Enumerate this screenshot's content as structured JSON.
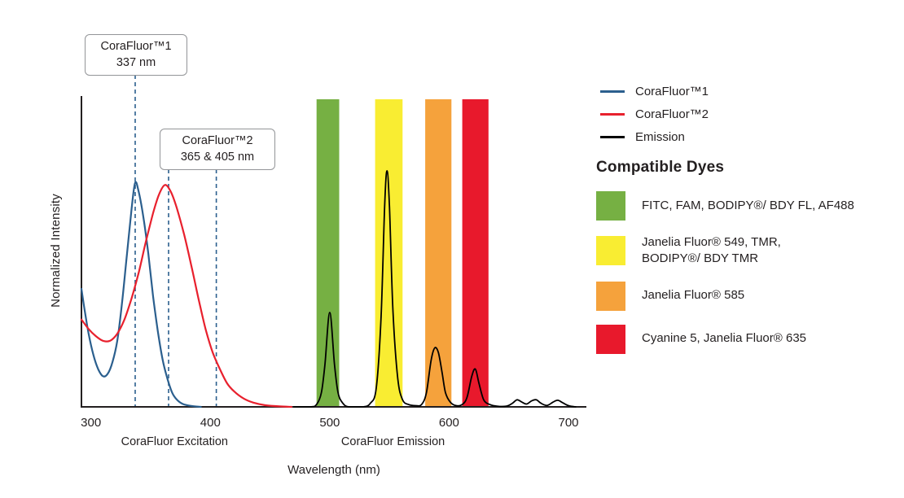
{
  "chart_data": {
    "type": "line",
    "xlabel": "Wavelength (nm)",
    "ylabel": "Normalized Intensity",
    "x_ticks": [
      "300",
      "400",
      "500",
      "600",
      "700"
    ],
    "x_tick_values": [
      300,
      400,
      500,
      600,
      700
    ],
    "xlim": [
      292,
      715
    ],
    "ylim": [
      0,
      1.31
    ],
    "grid": false,
    "legend_position": "right-top",
    "axis_color": "#231f20",
    "dashed_line_color": "#2b5f8e",
    "axis_sublabels": [
      {
        "label": "CoraFluor Excitation",
        "x_nm": 370
      },
      {
        "label": "CoraFluor Emission",
        "x_nm": 553
      }
    ],
    "filter_bands": [
      {
        "dye_group": "FITC, FAM, BODIPY®/ BDY FL, AF488",
        "color": "#76b043",
        "from_nm": 489,
        "to_nm": 508
      },
      {
        "dye_group": "Janelia Fluor® 549, TMR, BODIPY®/ BDY TMR",
        "color": "#f9ed32",
        "from_nm": 538,
        "to_nm": 561
      },
      {
        "dye_group": "Janelia Fluor® 585",
        "color": "#f5a23c",
        "from_nm": 580,
        "to_nm": 602
      },
      {
        "dye_group": "Cyanine 5, Janelia Fluor® 635",
        "color": "#e8192c",
        "from_nm": 611,
        "to_nm": 633
      }
    ],
    "series": [
      {
        "name": "CoraFluor™1",
        "color": "#2b5f8e",
        "peak_nm": 337,
        "points": [
          [
            292,
            0.5
          ],
          [
            295,
            0.4
          ],
          [
            298,
            0.31
          ],
          [
            302,
            0.22
          ],
          [
            306,
            0.16
          ],
          [
            310,
            0.13
          ],
          [
            314,
            0.14
          ],
          [
            318,
            0.19
          ],
          [
            322,
            0.28
          ],
          [
            326,
            0.44
          ],
          [
            330,
            0.64
          ],
          [
            334,
            0.84
          ],
          [
            337,
            0.95
          ],
          [
            340,
            0.91
          ],
          [
            344,
            0.8
          ],
          [
            348,
            0.65
          ],
          [
            352,
            0.47
          ],
          [
            356,
            0.32
          ],
          [
            360,
            0.2
          ],
          [
            364,
            0.12
          ],
          [
            368,
            0.06
          ],
          [
            372,
            0.03
          ],
          [
            377,
            0.012
          ],
          [
            384,
            0.004
          ],
          [
            392,
            0
          ]
        ]
      },
      {
        "name": "CoraFluor™2",
        "color": "#e8202d",
        "peak_nm": 362,
        "points": [
          [
            292,
            0.37
          ],
          [
            298,
            0.33
          ],
          [
            304,
            0.3
          ],
          [
            310,
            0.28
          ],
          [
            316,
            0.28
          ],
          [
            322,
            0.31
          ],
          [
            328,
            0.37
          ],
          [
            334,
            0.46
          ],
          [
            340,
            0.57
          ],
          [
            346,
            0.7
          ],
          [
            352,
            0.82
          ],
          [
            357,
            0.9
          ],
          [
            362,
            0.94
          ],
          [
            367,
            0.91
          ],
          [
            372,
            0.84
          ],
          [
            378,
            0.73
          ],
          [
            384,
            0.6
          ],
          [
            390,
            0.46
          ],
          [
            396,
            0.33
          ],
          [
            402,
            0.23
          ],
          [
            408,
            0.16
          ],
          [
            414,
            0.1
          ],
          [
            420,
            0.065
          ],
          [
            428,
            0.035
          ],
          [
            436,
            0.018
          ],
          [
            446,
            0.007
          ],
          [
            458,
            0.002
          ],
          [
            468,
            0
          ]
        ]
      },
      {
        "name": "Emission",
        "color": "#000000",
        "peak_nm": 548,
        "points": [
          [
            470,
            0
          ],
          [
            484,
            0
          ],
          [
            489,
            0.01
          ],
          [
            493,
            0.06
          ],
          [
            496,
            0.18
          ],
          [
            500,
            0.4
          ],
          [
            504,
            0.18
          ],
          [
            507,
            0.06
          ],
          [
            511,
            0.015
          ],
          [
            516,
            0
          ],
          [
            528,
            0
          ],
          [
            534,
            0.015
          ],
          [
            539,
            0.08
          ],
          [
            543,
            0.38
          ],
          [
            546,
            0.85
          ],
          [
            548,
            1.0
          ],
          [
            550,
            0.85
          ],
          [
            553,
            0.4
          ],
          [
            557,
            0.12
          ],
          [
            561,
            0.03
          ],
          [
            566,
            0.01
          ],
          [
            572,
            0.005
          ],
          [
            577,
            0.01
          ],
          [
            581,
            0.06
          ],
          [
            585,
            0.2
          ],
          [
            588,
            0.25
          ],
          [
            591,
            0.23
          ],
          [
            594,
            0.15
          ],
          [
            597,
            0.06
          ],
          [
            601,
            0.02
          ],
          [
            606,
            0.005
          ],
          [
            611,
            0.01
          ],
          [
            615,
            0.04
          ],
          [
            619,
            0.13
          ],
          [
            622,
            0.16
          ],
          [
            625,
            0.1
          ],
          [
            629,
            0.03
          ],
          [
            634,
            0.01
          ],
          [
            640,
            0.003
          ],
          [
            648,
            0.003
          ],
          [
            653,
            0.015
          ],
          [
            657,
            0.03
          ],
          [
            661,
            0.02
          ],
          [
            665,
            0.012
          ],
          [
            669,
            0.025
          ],
          [
            673,
            0.03
          ],
          [
            677,
            0.015
          ],
          [
            682,
            0.006
          ],
          [
            687,
            0.02
          ],
          [
            691,
            0.028
          ],
          [
            695,
            0.018
          ],
          [
            700,
            0.005
          ],
          [
            706,
            0
          ]
        ]
      }
    ]
  },
  "callouts": [
    {
      "line1": "CoraFluor™1",
      "line2": "337 nm",
      "dashed_lines_nm": [
        337
      ]
    },
    {
      "line1": "CoraFluor™2",
      "line2": "365 & 405 nm",
      "dashed_lines_nm": [
        365,
        405
      ]
    }
  ],
  "legend": {
    "items": [
      {
        "label": "CoraFluor™1",
        "color": "#2b5f8e"
      },
      {
        "label": "CoraFluor™2",
        "color": "#e8202d"
      },
      {
        "label": "Emission",
        "color": "#000000"
      }
    ]
  },
  "compatible_dyes": {
    "heading": "Compatible Dyes",
    "items": [
      {
        "label": "FITC, FAM, BODIPY®/ BDY FL, AF488",
        "color": "#76b043"
      },
      {
        "label": "Janelia Fluor® 549, TMR,\nBODIPY®/ BDY TMR",
        "color": "#f9ed32"
      },
      {
        "label": "Janelia Fluor® 585",
        "color": "#f5a23c"
      },
      {
        "label": "Cyanine 5, Janelia Fluor® 635",
        "color": "#e8192c"
      }
    ]
  }
}
